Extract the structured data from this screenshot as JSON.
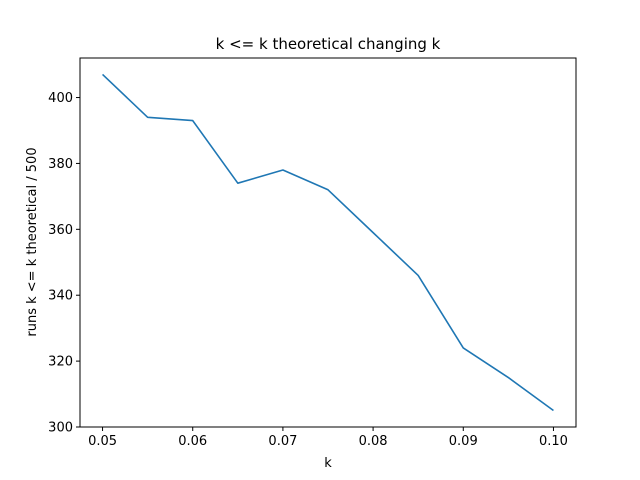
{
  "chart_data": {
    "type": "line",
    "title": "k <= k theoretical changing k",
    "xlabel": "k",
    "ylabel": "runs k <= k theoretical / 500",
    "xlim": [
      0.0475,
      0.1025
    ],
    "ylim": [
      300,
      412
    ],
    "xticks": [
      0.05,
      0.06,
      0.07,
      0.08,
      0.09,
      0.1
    ],
    "xtick_labels": [
      "0.05",
      "0.06",
      "0.07",
      "0.08",
      "0.09",
      "0.10"
    ],
    "yticks": [
      300,
      320,
      340,
      360,
      380,
      400
    ],
    "ytick_labels": [
      "300",
      "320",
      "340",
      "360",
      "380",
      "400"
    ],
    "grid": false,
    "series": [
      {
        "color": "#1f77b4",
        "x": [
          0.05,
          0.055,
          0.06,
          0.065,
          0.07,
          0.075,
          0.08,
          0.085,
          0.09,
          0.095,
          0.1
        ],
        "y": [
          407,
          394,
          393,
          374,
          378,
          372,
          359,
          346,
          324,
          315,
          305
        ]
      }
    ]
  }
}
